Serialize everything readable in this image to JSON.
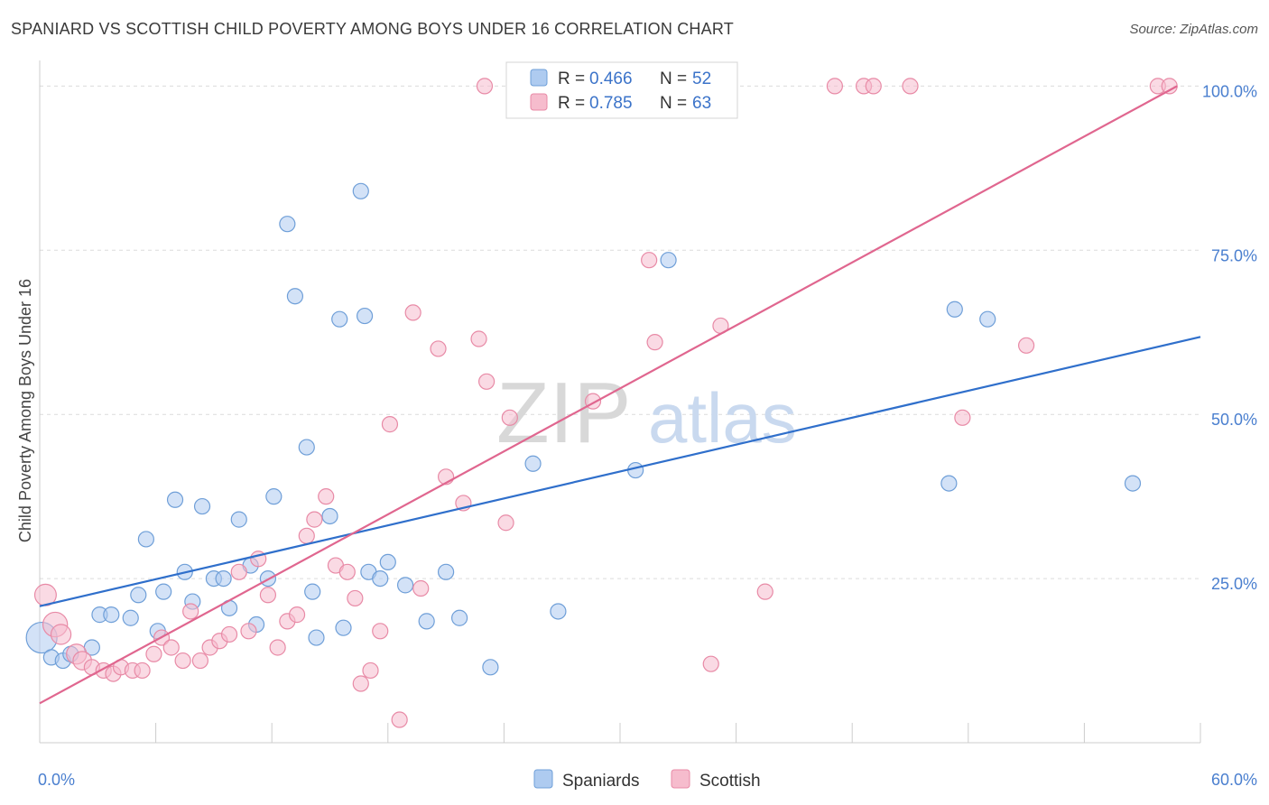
{
  "title": "SPANIARD VS SCOTTISH CHILD POVERTY AMONG BOYS UNDER 16 CORRELATION CHART",
  "source": "Source: ZipAtlas.com",
  "watermark": {
    "zip": "ZIP",
    "atlas": "atlas"
  },
  "colors": {
    "spaniards_fill": "#aecbf0",
    "spaniards_stroke": "#6f9fd8",
    "spaniards_line": "#2f6fcb",
    "scottish_fill": "#f6bccd",
    "scottish_stroke": "#e88aa6",
    "scottish_line": "#e0668f",
    "grid": "#dcdcdc",
    "axis": "#cccccc"
  },
  "legend": {
    "rows": [
      {
        "r_label": "R = ",
        "r_value": "0.466",
        "n_label": "N = ",
        "n_value": "52"
      },
      {
        "r_label": "R = ",
        "r_value": "0.785",
        "n_label": "N = ",
        "n_value": "63"
      }
    ]
  },
  "chart_data": {
    "type": "scatter",
    "ylabel": "Child Poverty Among Boys Under 16",
    "xlim": [
      0,
      60
    ],
    "ylim": [
      0,
      105
    ],
    "x_tick_labels": [
      {
        "value": 0,
        "label": "0.0%"
      },
      {
        "value": 60,
        "label": "60.0%"
      }
    ],
    "y_tick_labels": [
      {
        "value": 25,
        "label": "25.0%"
      },
      {
        "value": 50,
        "label": "50.0%"
      },
      {
        "value": 75,
        "label": "75.0%"
      },
      {
        "value": 100,
        "label": "100.0%"
      }
    ],
    "grid_y": [
      25,
      50,
      75,
      100
    ],
    "legend_position": "top-center",
    "series": [
      {
        "name": "Spaniards",
        "trend": {
          "x": [
            0,
            60
          ],
          "y": [
            20.8,
            61.8
          ]
        },
        "points": [
          {
            "x": 0.1,
            "y": 16.0,
            "s": 2
          },
          {
            "x": 0.6,
            "y": 13.0,
            "s": 1
          },
          {
            "x": 1.2,
            "y": 12.5,
            "s": 1
          },
          {
            "x": 1.6,
            "y": 13.5,
            "s": 1
          },
          {
            "x": 2.7,
            "y": 14.5,
            "s": 1
          },
          {
            "x": 3.1,
            "y": 19.5,
            "s": 1
          },
          {
            "x": 3.7,
            "y": 19.5,
            "s": 1
          },
          {
            "x": 4.7,
            "y": 19.0,
            "s": 1
          },
          {
            "x": 5.1,
            "y": 22.5,
            "s": 1
          },
          {
            "x": 5.5,
            "y": 31.0,
            "s": 1
          },
          {
            "x": 6.1,
            "y": 17.0,
            "s": 1
          },
          {
            "x": 6.4,
            "y": 23.0,
            "s": 1
          },
          {
            "x": 7.0,
            "y": 37.0,
            "s": 1
          },
          {
            "x": 7.5,
            "y": 26.0,
            "s": 1
          },
          {
            "x": 7.9,
            "y": 21.5,
            "s": 1
          },
          {
            "x": 8.4,
            "y": 36.0,
            "s": 1
          },
          {
            "x": 9.0,
            "y": 25.0,
            "s": 1
          },
          {
            "x": 9.5,
            "y": 25.0,
            "s": 1
          },
          {
            "x": 9.8,
            "y": 20.5,
            "s": 1
          },
          {
            "x": 10.3,
            "y": 34.0,
            "s": 1
          },
          {
            "x": 10.9,
            "y": 27.0,
            "s": 1
          },
          {
            "x": 11.2,
            "y": 18.0,
            "s": 1
          },
          {
            "x": 11.8,
            "y": 25.0,
            "s": 1
          },
          {
            "x": 12.1,
            "y": 37.5,
            "s": 1
          },
          {
            "x": 12.8,
            "y": 79.0,
            "s": 1
          },
          {
            "x": 13.2,
            "y": 68.0,
            "s": 1
          },
          {
            "x": 13.8,
            "y": 45.0,
            "s": 1
          },
          {
            "x": 14.1,
            "y": 23.0,
            "s": 1
          },
          {
            "x": 14.3,
            "y": 16.0,
            "s": 1
          },
          {
            "x": 15.0,
            "y": 34.5,
            "s": 1
          },
          {
            "x": 15.5,
            "y": 64.5,
            "s": 1
          },
          {
            "x": 15.7,
            "y": 17.5,
            "s": 1
          },
          {
            "x": 16.6,
            "y": 84.0,
            "s": 1
          },
          {
            "x": 16.8,
            "y": 65.0,
            "s": 1
          },
          {
            "x": 17.0,
            "y": 26.0,
            "s": 1
          },
          {
            "x": 17.6,
            "y": 25.0,
            "s": 1
          },
          {
            "x": 18.0,
            "y": 27.5,
            "s": 1
          },
          {
            "x": 18.9,
            "y": 24.0,
            "s": 1
          },
          {
            "x": 20.0,
            "y": 18.5,
            "s": 1
          },
          {
            "x": 21.0,
            "y": 26.0,
            "s": 1
          },
          {
            "x": 21.7,
            "y": 19.0,
            "s": 1
          },
          {
            "x": 23.3,
            "y": 11.5,
            "s": 1
          },
          {
            "x": 25.5,
            "y": 42.5,
            "s": 1
          },
          {
            "x": 26.8,
            "y": 20.0,
            "s": 1
          },
          {
            "x": 30.8,
            "y": 41.5,
            "s": 1
          },
          {
            "x": 32.5,
            "y": 73.5,
            "s": 1
          },
          {
            "x": 47.0,
            "y": 39.5,
            "s": 1
          },
          {
            "x": 47.3,
            "y": 66.0,
            "s": 1
          },
          {
            "x": 49.0,
            "y": 64.5,
            "s": 1
          },
          {
            "x": 56.5,
            "y": 39.5,
            "s": 1
          }
        ]
      },
      {
        "name": "Scottish",
        "trend": {
          "x": [
            0,
            58.8
          ],
          "y": [
            6.0,
            100.0
          ]
        },
        "points": [
          {
            "x": 0.3,
            "y": 22.5,
            "s": 1.4
          },
          {
            "x": 0.8,
            "y": 18.0,
            "s": 1.6
          },
          {
            "x": 1.1,
            "y": 16.5,
            "s": 1.3
          },
          {
            "x": 1.9,
            "y": 13.5,
            "s": 1.3
          },
          {
            "x": 2.2,
            "y": 12.5,
            "s": 1.2
          },
          {
            "x": 2.7,
            "y": 11.5,
            "s": 1
          },
          {
            "x": 3.3,
            "y": 11.0,
            "s": 1
          },
          {
            "x": 3.8,
            "y": 10.5,
            "s": 1
          },
          {
            "x": 4.2,
            "y": 11.5,
            "s": 1
          },
          {
            "x": 4.8,
            "y": 11.0,
            "s": 1
          },
          {
            "x": 5.3,
            "y": 11.0,
            "s": 1
          },
          {
            "x": 5.9,
            "y": 13.5,
            "s": 1
          },
          {
            "x": 6.3,
            "y": 16.0,
            "s": 1
          },
          {
            "x": 6.8,
            "y": 14.5,
            "s": 1
          },
          {
            "x": 7.4,
            "y": 12.5,
            "s": 1
          },
          {
            "x": 7.8,
            "y": 20.0,
            "s": 1
          },
          {
            "x": 8.3,
            "y": 12.5,
            "s": 1
          },
          {
            "x": 8.8,
            "y": 14.5,
            "s": 1
          },
          {
            "x": 9.3,
            "y": 15.5,
            "s": 1
          },
          {
            "x": 9.8,
            "y": 16.5,
            "s": 1
          },
          {
            "x": 10.3,
            "y": 26.0,
            "s": 1
          },
          {
            "x": 10.8,
            "y": 17.0,
            "s": 1
          },
          {
            "x": 11.3,
            "y": 28.0,
            "s": 1
          },
          {
            "x": 11.8,
            "y": 22.5,
            "s": 1
          },
          {
            "x": 12.3,
            "y": 14.5,
            "s": 1
          },
          {
            "x": 12.8,
            "y": 18.5,
            "s": 1
          },
          {
            "x": 13.3,
            "y": 19.5,
            "s": 1
          },
          {
            "x": 13.8,
            "y": 31.5,
            "s": 1
          },
          {
            "x": 14.2,
            "y": 34.0,
            "s": 1
          },
          {
            "x": 14.8,
            "y": 37.5,
            "s": 1
          },
          {
            "x": 15.3,
            "y": 27.0,
            "s": 1
          },
          {
            "x": 15.9,
            "y": 26.0,
            "s": 1
          },
          {
            "x": 16.3,
            "y": 22.0,
            "s": 1
          },
          {
            "x": 16.6,
            "y": 9.0,
            "s": 1
          },
          {
            "x": 17.1,
            "y": 11.0,
            "s": 1
          },
          {
            "x": 17.6,
            "y": 17.0,
            "s": 1
          },
          {
            "x": 18.1,
            "y": 48.5,
            "s": 1
          },
          {
            "x": 18.6,
            "y": 3.5,
            "s": 1
          },
          {
            "x": 19.3,
            "y": 65.5,
            "s": 1
          },
          {
            "x": 19.7,
            "y": 23.5,
            "s": 1
          },
          {
            "x": 20.6,
            "y": 60.0,
            "s": 1
          },
          {
            "x": 21.0,
            "y": 40.5,
            "s": 1
          },
          {
            "x": 21.9,
            "y": 36.5,
            "s": 1
          },
          {
            "x": 22.7,
            "y": 61.5,
            "s": 1
          },
          {
            "x": 23.0,
            "y": 100.0,
            "s": 1
          },
          {
            "x": 23.1,
            "y": 55.0,
            "s": 1
          },
          {
            "x": 24.1,
            "y": 33.5,
            "s": 1
          },
          {
            "x": 24.3,
            "y": 49.5,
            "s": 1
          },
          {
            "x": 28.6,
            "y": 52.0,
            "s": 1
          },
          {
            "x": 31.5,
            "y": 73.5,
            "s": 1
          },
          {
            "x": 31.8,
            "y": 61.0,
            "s": 1
          },
          {
            "x": 34.7,
            "y": 12.0,
            "s": 1
          },
          {
            "x": 35.2,
            "y": 63.5,
            "s": 1
          },
          {
            "x": 37.5,
            "y": 23.0,
            "s": 1
          },
          {
            "x": 41.1,
            "y": 100.0,
            "s": 1
          },
          {
            "x": 42.6,
            "y": 100.0,
            "s": 1
          },
          {
            "x": 43.1,
            "y": 100.0,
            "s": 1
          },
          {
            "x": 45.0,
            "y": 100.0,
            "s": 1
          },
          {
            "x": 47.7,
            "y": 49.5,
            "s": 1
          },
          {
            "x": 51.0,
            "y": 60.5,
            "s": 1
          },
          {
            "x": 57.8,
            "y": 100.0,
            "s": 1
          },
          {
            "x": 58.4,
            "y": 100.0,
            "s": 1
          }
        ]
      }
    ]
  }
}
